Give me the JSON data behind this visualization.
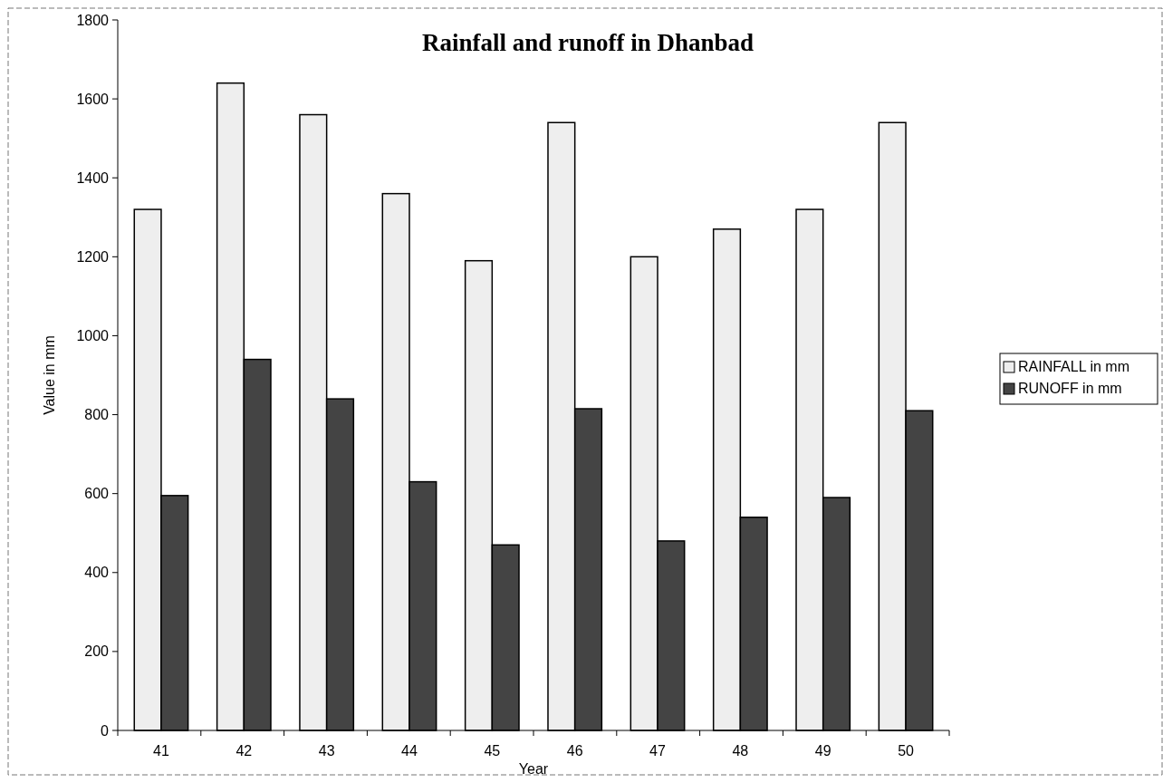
{
  "chart_data": {
    "type": "bar",
    "title": "Rainfall and runoff in Dhanbad",
    "xlabel": "Year",
    "ylabel": "Value in mm",
    "categories": [
      "41",
      "42",
      "43",
      "44",
      "45",
      "46",
      "47",
      "48",
      "49",
      "50"
    ],
    "series": [
      {
        "name": "RAINFALL in mm",
        "color": "#eeeeee",
        "values": [
          1320,
          1640,
          1560,
          1360,
          1190,
          1540,
          1200,
          1270,
          1320,
          1540
        ]
      },
      {
        "name": "RUNOFF in mm",
        "color": "#444444",
        "values": [
          595,
          940,
          840,
          630,
          470,
          815,
          480,
          540,
          590,
          810
        ]
      }
    ],
    "ylim": [
      0,
      1800
    ],
    "yticks": [
      0,
      200,
      400,
      600,
      800,
      1000,
      1200,
      1400,
      1600,
      1800
    ],
    "grid": false,
    "legend": "right"
  }
}
